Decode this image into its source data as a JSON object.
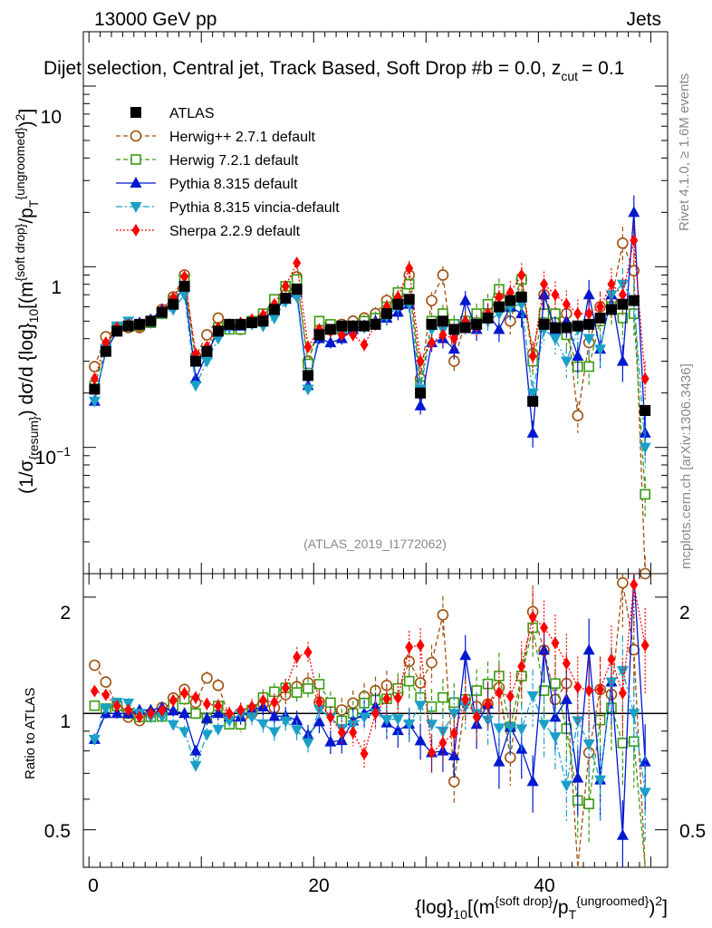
{
  "header": {
    "left": "13000 GeV pp",
    "right": "Jets",
    "title": "Dijet selection, Central jet, Track Based, Soft Drop #b = 0.0, z_cut = 0.1",
    "title_main": "Dijet selection, Central jet, Track Based, Soft Drop #b",
    "title_beta": "= 0.0, z",
    "title_zsub": "cut",
    "title_zval": "= 0.1"
  },
  "side_labels": {
    "rivet": "Rivet 4.1.0, ≥ 1.6M events",
    "mcplots": "mcplots.cern.ch [arXiv:1306.3436]"
  },
  "watermark": "(ATLAS_2019_I1772062)",
  "colors": {
    "atlas": "#000000",
    "herwigpp": "#a05010",
    "herwig7": "#3a9a10",
    "pythia": "#0018d0",
    "vincia": "#1aa0c8",
    "sherpa": "#ff0000"
  },
  "chart_data": {
    "type": "scatter",
    "title": "Dijet selection, Central jet, Track Based, Soft Drop #b = 0.0, z_cut = 0.1",
    "xlabel": "{log}_10[(m^{soft drop}/p_T^{ungroomed})^2]",
    "xlabel_parts": {
      "a": "{log}",
      "b": "10",
      "c": "[(m",
      "d": "{soft drop}",
      "e": "/p",
      "f": "T",
      "g": "{ungroomed}",
      "h": ")",
      "i": "2",
      "j": "]"
    },
    "ylabel": "(1/σ_{resum}) dσ/d {log}_10[(m^{soft drop}/p_T^{ungroomed})^2]",
    "ylabel_ratio": "Ratio to ATLAS",
    "xlim": [
      -0.5,
      51.5
    ],
    "ylim": [
      0.02,
      20
    ],
    "ratio_ylim": [
      0.4,
      2.3
    ],
    "y_log": true,
    "x_ticks": [
      "0",
      "20",
      "40"
    ],
    "y_ticks": [
      "10",
      "1",
      "10^-1"
    ],
    "ratio_ticks": [
      "2",
      "1",
      "0.5"
    ],
    "x": [
      0.5,
      1.5,
      2.5,
      3.5,
      4.5,
      5.5,
      6.5,
      7.5,
      8.5,
      9.5,
      10.5,
      11.5,
      12.5,
      13.5,
      14.5,
      15.5,
      16.5,
      17.5,
      18.5,
      19.5,
      20.5,
      21.5,
      22.5,
      23.5,
      24.5,
      25.5,
      26.5,
      27.5,
      28.5,
      29.5,
      30.5,
      31.5,
      32.5,
      33.5,
      34.5,
      35.5,
      36.5,
      37.5,
      38.5,
      39.5,
      40.5,
      41.5,
      42.5,
      43.5,
      44.5,
      45.5,
      46.5,
      47.5,
      48.5,
      49.5
    ],
    "series": [
      {
        "name": "ATLAS",
        "key": "atlas",
        "marker": "square-filled",
        "line": "none",
        "values": [
          0.21,
          0.34,
          0.44,
          0.47,
          0.48,
          0.5,
          0.56,
          0.62,
          0.78,
          0.3,
          0.34,
          0.44,
          0.48,
          0.48,
          0.49,
          0.5,
          0.58,
          0.67,
          0.75,
          0.25,
          0.42,
          0.45,
          0.47,
          0.47,
          0.47,
          0.48,
          0.55,
          0.62,
          0.66,
          0.2,
          0.48,
          0.5,
          0.45,
          0.46,
          0.48,
          0.52,
          0.6,
          0.65,
          0.68,
          0.18,
          0.48,
          0.46,
          0.46,
          0.47,
          0.48,
          0.52,
          0.58,
          0.62,
          0.65,
          0.16
        ]
      },
      {
        "name": "Herwig++ 2.7.1 default",
        "key": "herwigpp",
        "marker": "circle-open",
        "line": "dashed",
        "values": [
          0.28,
          0.41,
          0.46,
          0.46,
          0.46,
          0.5,
          0.58,
          0.68,
          0.9,
          0.32,
          0.42,
          0.52,
          0.47,
          0.45,
          0.49,
          0.53,
          0.6,
          0.75,
          0.88,
          0.3,
          0.45,
          0.46,
          0.48,
          0.5,
          0.52,
          0.55,
          0.65,
          0.7,
          0.9,
          0.24,
          0.65,
          0.9,
          0.3,
          0.5,
          0.5,
          0.55,
          0.7,
          0.5,
          0.85,
          0.33,
          0.7,
          0.5,
          0.55,
          0.15,
          0.38,
          0.6,
          0.65,
          1.35,
          0.95,
          0.02
        ]
      },
      {
        "name": "Herwig 7.2.1 default",
        "key": "herwig7",
        "marker": "square-open",
        "line": "dashed",
        "values": [
          0.22,
          0.35,
          0.46,
          0.47,
          0.47,
          0.49,
          0.55,
          0.65,
          0.85,
          0.3,
          0.33,
          0.46,
          0.45,
          0.45,
          0.5,
          0.55,
          0.66,
          0.78,
          0.85,
          0.29,
          0.5,
          0.48,
          0.45,
          0.47,
          0.5,
          0.52,
          0.6,
          0.72,
          0.8,
          0.22,
          0.5,
          0.55,
          0.48,
          0.5,
          0.55,
          0.62,
          0.75,
          0.6,
          0.85,
          0.3,
          0.55,
          0.55,
          0.42,
          0.28,
          0.28,
          0.5,
          0.6,
          0.52,
          0.55,
          0.055
        ]
      },
      {
        "name": "Pythia 8.315 default",
        "key": "pythia",
        "marker": "triangle-up",
        "line": "solid",
        "values": [
          0.18,
          0.34,
          0.44,
          0.47,
          0.49,
          0.51,
          0.58,
          0.63,
          0.78,
          0.24,
          0.33,
          0.44,
          0.47,
          0.47,
          0.5,
          0.52,
          0.57,
          0.66,
          0.72,
          0.22,
          0.4,
          0.38,
          0.4,
          0.45,
          0.47,
          0.5,
          0.52,
          0.56,
          0.62,
          0.17,
          0.38,
          0.4,
          0.35,
          0.65,
          0.45,
          0.55,
          0.45,
          0.6,
          0.55,
          0.12,
          0.7,
          0.45,
          0.5,
          0.32,
          0.7,
          0.35,
          0.7,
          0.3,
          2.0,
          0.12
        ]
      },
      {
        "name": "Pythia 8.315 vincia-default",
        "key": "vincia",
        "marker": "triangle-down",
        "line": "dashdot",
        "values": [
          0.18,
          0.35,
          0.47,
          0.5,
          0.48,
          0.49,
          0.55,
          0.58,
          0.7,
          0.22,
          0.3,
          0.4,
          0.46,
          0.48,
          0.48,
          0.47,
          0.52,
          0.64,
          0.68,
          0.21,
          0.43,
          0.44,
          0.43,
          0.44,
          0.46,
          0.48,
          0.53,
          0.6,
          0.62,
          0.21,
          0.45,
          0.45,
          0.45,
          0.48,
          0.48,
          0.5,
          0.55,
          0.6,
          0.62,
          0.2,
          0.45,
          0.4,
          0.3,
          0.45,
          0.4,
          0.35,
          0.7,
          0.8,
          0.65,
          0.1
        ]
      },
      {
        "name": "Sherpa 2.2.9 default",
        "key": "sherpa",
        "marker": "diamond",
        "line": "dotted",
        "values": [
          0.24,
          0.38,
          0.46,
          0.48,
          0.47,
          0.5,
          0.57,
          0.67,
          0.88,
          0.33,
          0.36,
          0.46,
          0.48,
          0.49,
          0.51,
          0.54,
          0.62,
          0.78,
          1.05,
          0.36,
          0.45,
          0.44,
          0.42,
          0.42,
          0.37,
          0.48,
          0.6,
          0.68,
          0.98,
          0.3,
          0.38,
          0.42,
          0.4,
          0.5,
          0.47,
          0.55,
          0.68,
          0.72,
          0.9,
          0.32,
          0.8,
          0.7,
          0.62,
          0.55,
          0.55,
          0.6,
          0.8,
          0.7,
          1.4,
          0.24
        ]
      }
    ]
  }
}
